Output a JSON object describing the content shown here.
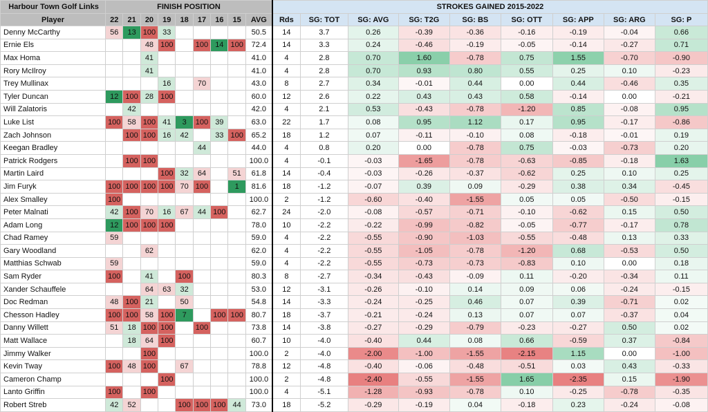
{
  "header": {
    "course": "Harbour Town Golf Links",
    "finish_title": "FINISH POSITION",
    "sg_title": "STROKES GAINED  2015-2022",
    "player_label": "Player",
    "years": [
      "22",
      "21",
      "20",
      "19",
      "18",
      "17",
      "16",
      "15"
    ],
    "avg_label": "AVG",
    "rds_label": "Rds",
    "sg_cols": [
      "SG: TOT",
      "SG: AVG",
      "SG: T2G",
      "SG: BS",
      "SG: OTT",
      "SG: APP",
      "SG: ARG",
      "SG: P"
    ]
  },
  "colors": {
    "finish_top": "#2e9a5e",
    "finish_mid": "#cfe9d9",
    "finish_bad_light": "#f4d4d4",
    "finish_bad": "#d5625f",
    "sg_pos": "#2eaa67",
    "sg_neg": "#e05555"
  },
  "rows": [
    {
      "player": "Denny McCarthy",
      "finish": [
        "56",
        "13",
        "100",
        "33",
        "",
        "",
        "",
        ""
      ],
      "avg": "50.5",
      "rds": "14",
      "sg": [
        "3.7",
        "0.26",
        "-0.39",
        "-0.36",
        "-0.16",
        "-0.19",
        "-0.04",
        "0.66"
      ]
    },
    {
      "player": "Ernie Els",
      "finish": [
        "",
        "",
        "48",
        "100",
        "",
        "100",
        "14",
        "100"
      ],
      "avg": "72.4",
      "rds": "14",
      "sg": [
        "3.3",
        "0.24",
        "-0.46",
        "-0.19",
        "-0.05",
        "-0.14",
        "-0.27",
        "0.71"
      ]
    },
    {
      "player": "Max Homa",
      "finish": [
        "",
        "",
        "41",
        "",
        "",
        "",
        "",
        ""
      ],
      "avg": "41.0",
      "rds": "4",
      "sg": [
        "2.8",
        "0.70",
        "1.60",
        "-0.78",
        "0.75",
        "1.55",
        "-0.70",
        "-0.90"
      ]
    },
    {
      "player": "Rory McIlroy",
      "finish": [
        "",
        "",
        "41",
        "",
        "",
        "",
        "",
        ""
      ],
      "avg": "41.0",
      "rds": "4",
      "sg": [
        "2.8",
        "0.70",
        "0.93",
        "0.80",
        "0.55",
        "0.25",
        "0.10",
        "-0.23"
      ]
    },
    {
      "player": "Trey Mullinax",
      "finish": [
        "",
        "",
        "",
        "16",
        "",
        "70",
        "",
        ""
      ],
      "avg": "43.0",
      "rds": "8",
      "sg": [
        "2.7",
        "0.34",
        "-0.01",
        "0.44",
        "0.00",
        "0.44",
        "-0.46",
        "0.35"
      ]
    },
    {
      "player": "Tyler Duncan",
      "finish": [
        "12",
        "100",
        "28",
        "100",
        "",
        "",
        "",
        ""
      ],
      "avg": "60.0",
      "rds": "12",
      "sg": [
        "2.6",
        "0.22",
        "0.43",
        "0.43",
        "0.58",
        "-0.14",
        "0.00",
        "-0.21"
      ]
    },
    {
      "player": "Will Zalatoris",
      "finish": [
        "",
        "42",
        "",
        "",
        "",
        "",
        "",
        ""
      ],
      "avg": "42.0",
      "rds": "4",
      "sg": [
        "2.1",
        "0.53",
        "-0.43",
        "-0.78",
        "-1.20",
        "0.85",
        "-0.08",
        "0.95"
      ]
    },
    {
      "player": "Luke List",
      "finish": [
        "100",
        "58",
        "100",
        "41",
        "3",
        "100",
        "39",
        ""
      ],
      "avg": "63.0",
      "rds": "22",
      "sg": [
        "1.7",
        "0.08",
        "0.95",
        "1.12",
        "0.17",
        "0.95",
        "-0.17",
        "-0.86"
      ]
    },
    {
      "player": "Zach Johnson",
      "finish": [
        "",
        "100",
        "100",
        "16",
        "42",
        "",
        "33",
        "100"
      ],
      "avg": "65.2",
      "rds": "18",
      "sg": [
        "1.2",
        "0.07",
        "-0.11",
        "-0.10",
        "0.08",
        "-0.18",
        "-0.01",
        "0.19"
      ]
    },
    {
      "player": "Keegan Bradley",
      "finish": [
        "",
        "",
        "",
        "",
        "",
        "44",
        "",
        ""
      ],
      "avg": "44.0",
      "rds": "4",
      "sg": [
        "0.8",
        "0.20",
        "0.00",
        "-0.78",
        "0.75",
        "-0.03",
        "-0.73",
        "0.20"
      ]
    },
    {
      "player": "Patrick Rodgers",
      "finish": [
        "",
        "100",
        "100",
        "",
        "",
        "",
        "",
        ""
      ],
      "avg": "100.0",
      "rds": "4",
      "sg": [
        "-0.1",
        "-0.03",
        "-1.65",
        "-0.78",
        "-0.63",
        "-0.85",
        "-0.18",
        "1.63"
      ]
    },
    {
      "player": "Martin Laird",
      "finish": [
        "",
        "",
        "",
        "100",
        "32",
        "64",
        "",
        "51"
      ],
      "avg": "61.8",
      "rds": "14",
      "sg": [
        "-0.4",
        "-0.03",
        "-0.26",
        "-0.37",
        "-0.62",
        "0.25",
        "0.10",
        "0.25"
      ]
    },
    {
      "player": "Jim Furyk",
      "finish": [
        "100",
        "100",
        "100",
        "100",
        "70",
        "100",
        "",
        "1"
      ],
      "avg": "81.6",
      "rds": "18",
      "sg": [
        "-1.2",
        "-0.07",
        "0.39",
        "0.09",
        "-0.29",
        "0.38",
        "0.34",
        "-0.45"
      ]
    },
    {
      "player": "Alex Smalley",
      "finish": [
        "100",
        "",
        "",
        "",
        "",
        "",
        "",
        ""
      ],
      "avg": "100.0",
      "rds": "2",
      "sg": [
        "-1.2",
        "-0.60",
        "-0.40",
        "-1.55",
        "0.05",
        "0.05",
        "-0.50",
        "-0.15"
      ]
    },
    {
      "player": "Peter Malnati",
      "finish": [
        "42",
        "100",
        "70",
        "16",
        "67",
        "44",
        "100",
        ""
      ],
      "avg": "62.7",
      "rds": "24",
      "sg": [
        "-2.0",
        "-0.08",
        "-0.57",
        "-0.71",
        "-0.10",
        "-0.62",
        "0.15",
        "0.50"
      ]
    },
    {
      "player": "Adam Long",
      "finish": [
        "12",
        "100",
        "100",
        "100",
        "",
        "",
        "",
        ""
      ],
      "avg": "78.0",
      "rds": "10",
      "sg": [
        "-2.2",
        "-0.22",
        "-0.99",
        "-0.82",
        "-0.05",
        "-0.77",
        "-0.17",
        "0.78"
      ]
    },
    {
      "player": "Chad Ramey",
      "finish": [
        "59",
        "",
        "",
        "",
        "",
        "",
        "",
        ""
      ],
      "avg": "59.0",
      "rds": "4",
      "sg": [
        "-2.2",
        "-0.55",
        "-0.90",
        "-1.03",
        "-0.55",
        "-0.48",
        "0.13",
        "0.33"
      ]
    },
    {
      "player": "Gary Woodland",
      "finish": [
        "",
        "",
        "62",
        "",
        "",
        "",
        "",
        ""
      ],
      "avg": "62.0",
      "rds": "4",
      "sg": [
        "-2.2",
        "-0.55",
        "-1.05",
        "-0.78",
        "-1.20",
        "0.68",
        "-0.53",
        "0.50"
      ]
    },
    {
      "player": "Matthias Schwab",
      "finish": [
        "59",
        "",
        "",
        "",
        "",
        "",
        "",
        ""
      ],
      "avg": "59.0",
      "rds": "4",
      "sg": [
        "-2.2",
        "-0.55",
        "-0.73",
        "-0.73",
        "-0.83",
        "0.10",
        "0.00",
        "0.18"
      ]
    },
    {
      "player": "Sam Ryder",
      "finish": [
        "100",
        "",
        "41",
        "",
        "100",
        "",
        "",
        ""
      ],
      "avg": "80.3",
      "rds": "8",
      "sg": [
        "-2.7",
        "-0.34",
        "-0.43",
        "-0.09",
        "0.11",
        "-0.20",
        "-0.34",
        "0.11"
      ]
    },
    {
      "player": "Xander Schauffele",
      "finish": [
        "",
        "",
        "64",
        "63",
        "32",
        "",
        "",
        ""
      ],
      "avg": "53.0",
      "rds": "12",
      "sg": [
        "-3.1",
        "-0.26",
        "-0.10",
        "0.14",
        "0.09",
        "0.06",
        "-0.24",
        "-0.15"
      ]
    },
    {
      "player": "Doc Redman",
      "finish": [
        "48",
        "100",
        "21",
        "",
        "50",
        "",
        "",
        ""
      ],
      "avg": "54.8",
      "rds": "14",
      "sg": [
        "-3.3",
        "-0.24",
        "-0.25",
        "0.46",
        "0.07",
        "0.39",
        "-0.71",
        "0.02"
      ]
    },
    {
      "player": "Chesson Hadley",
      "finish": [
        "100",
        "100",
        "58",
        "100",
        "7",
        "",
        "100",
        "100"
      ],
      "avg": "80.7",
      "rds": "18",
      "sg": [
        "-3.7",
        "-0.21",
        "-0.24",
        "0.13",
        "0.07",
        "0.07",
        "-0.37",
        "0.04"
      ]
    },
    {
      "player": "Danny Willett",
      "finish": [
        "51",
        "18",
        "100",
        "100",
        "",
        "100",
        "",
        ""
      ],
      "avg": "73.8",
      "rds": "14",
      "sg": [
        "-3.8",
        "-0.27",
        "-0.29",
        "-0.79",
        "-0.23",
        "-0.27",
        "0.50",
        "0.02"
      ]
    },
    {
      "player": "Matt Wallace",
      "finish": [
        "",
        "18",
        "64",
        "100",
        "",
        "",
        "",
        ""
      ],
      "avg": "60.7",
      "rds": "10",
      "sg": [
        "-4.0",
        "-0.40",
        "0.44",
        "0.08",
        "0.66",
        "-0.59",
        "0.37",
        "-0.84"
      ]
    },
    {
      "player": "Jimmy Walker",
      "finish": [
        "",
        "",
        "100",
        "",
        "",
        "",
        "",
        ""
      ],
      "avg": "100.0",
      "rds": "2",
      "sg": [
        "-4.0",
        "-2.00",
        "-1.00",
        "-1.55",
        "-2.15",
        "1.15",
        "0.00",
        "-1.00"
      ]
    },
    {
      "player": "Kevin Tway",
      "finish": [
        "100",
        "48",
        "100",
        "",
        "67",
        "",
        "",
        ""
      ],
      "avg": "78.8",
      "rds": "12",
      "sg": [
        "-4.8",
        "-0.40",
        "-0.06",
        "-0.48",
        "-0.51",
        "0.03",
        "0.43",
        "-0.33"
      ]
    },
    {
      "player": "Cameron Champ",
      "finish": [
        "",
        "",
        "",
        "100",
        "",
        "",
        "",
        ""
      ],
      "avg": "100.0",
      "rds": "2",
      "sg": [
        "-4.8",
        "-2.40",
        "-0.55",
        "-1.55",
        "1.65",
        "-2.35",
        "0.15",
        "-1.90"
      ]
    },
    {
      "player": "Lanto Griffin",
      "finish": [
        "100",
        "",
        "100",
        "",
        "",
        "",
        "",
        ""
      ],
      "avg": "100.0",
      "rds": "4",
      "sg": [
        "-5.1",
        "-1.28",
        "-0.93",
        "-0.78",
        "0.10",
        "-0.25",
        "-0.78",
        "-0.35"
      ]
    },
    {
      "player": "Robert Streb",
      "finish": [
        "42",
        "52",
        "",
        "",
        "100",
        "100",
        "100",
        "44"
      ],
      "avg": "73.0",
      "rds": "18",
      "sg": [
        "-5.2",
        "-0.29",
        "-0.19",
        "0.04",
        "-0.18",
        "0.23",
        "-0.24",
        "-0.08"
      ]
    }
  ]
}
